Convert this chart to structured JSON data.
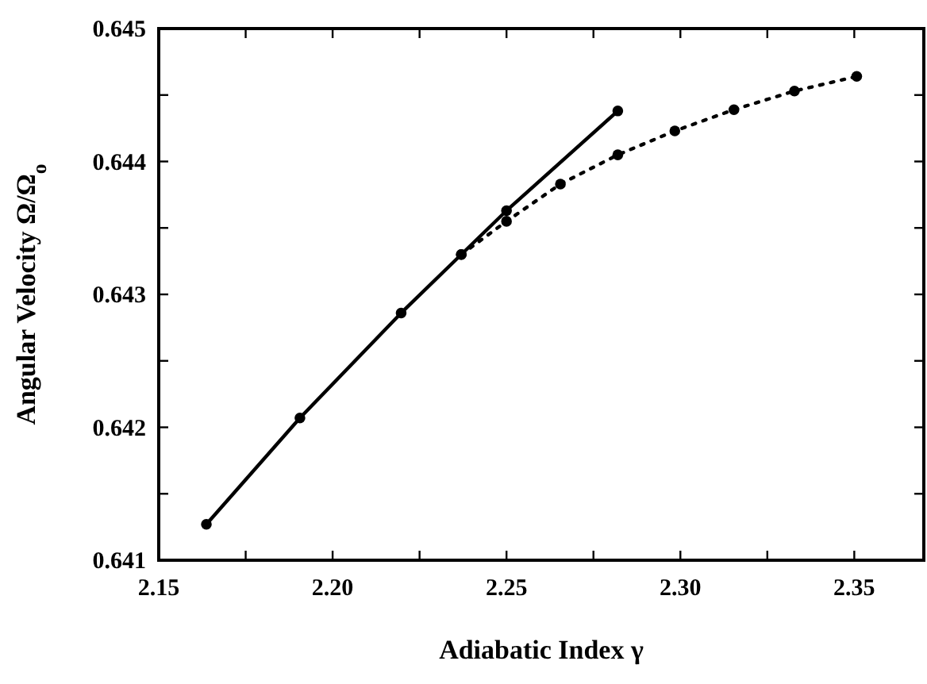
{
  "chart_data": {
    "type": "line",
    "xlabel": "Adiabatic Index   γ",
    "ylabel": "Angular Velocity   Ω/Ω$_{o}$",
    "xlim": [
      2.15,
      2.37
    ],
    "xticks": [
      2.15,
      {
        "value": 2.175,
        "label": null
      },
      "2.20",
      {
        "value": 2.225,
        "label": null
      },
      2.25,
      {
        "value": 2.275,
        "label": null
      },
      "2.30",
      {
        "value": 2.325,
        "label": null
      },
      2.35
    ],
    "ylim": [
      0.641,
      0.645
    ],
    "yticks": [
      0.641,
      {
        "value": 0.6415,
        "label": null
      },
      0.642,
      {
        "value": 0.6425,
        "label": null
      },
      0.643,
      {
        "value": 0.6435,
        "label": null
      },
      0.644,
      {
        "value": 0.6445,
        "label": null
      },
      0.645
    ],
    "grid": false,
    "marker": "circle",
    "series": [
      {
        "color": "#000000",
        "line_style": "solid",
        "x": [
          2.1637,
          2.1906,
          2.2197,
          2.237,
          2.25,
          2.282
        ],
        "values": [
          0.64127,
          0.64207,
          0.64286,
          0.6433,
          0.64363,
          0.64438
        ]
      },
      {
        "color": "#000000",
        "line_style": "dotted",
        "x": [
          2.237,
          2.25,
          2.2655,
          2.282,
          2.2984,
          2.3154,
          2.3328,
          2.3507
        ],
        "values": [
          0.6433,
          0.64355,
          0.64383,
          0.64405,
          0.64423,
          0.64439,
          0.64453,
          0.64464
        ]
      }
    ]
  }
}
